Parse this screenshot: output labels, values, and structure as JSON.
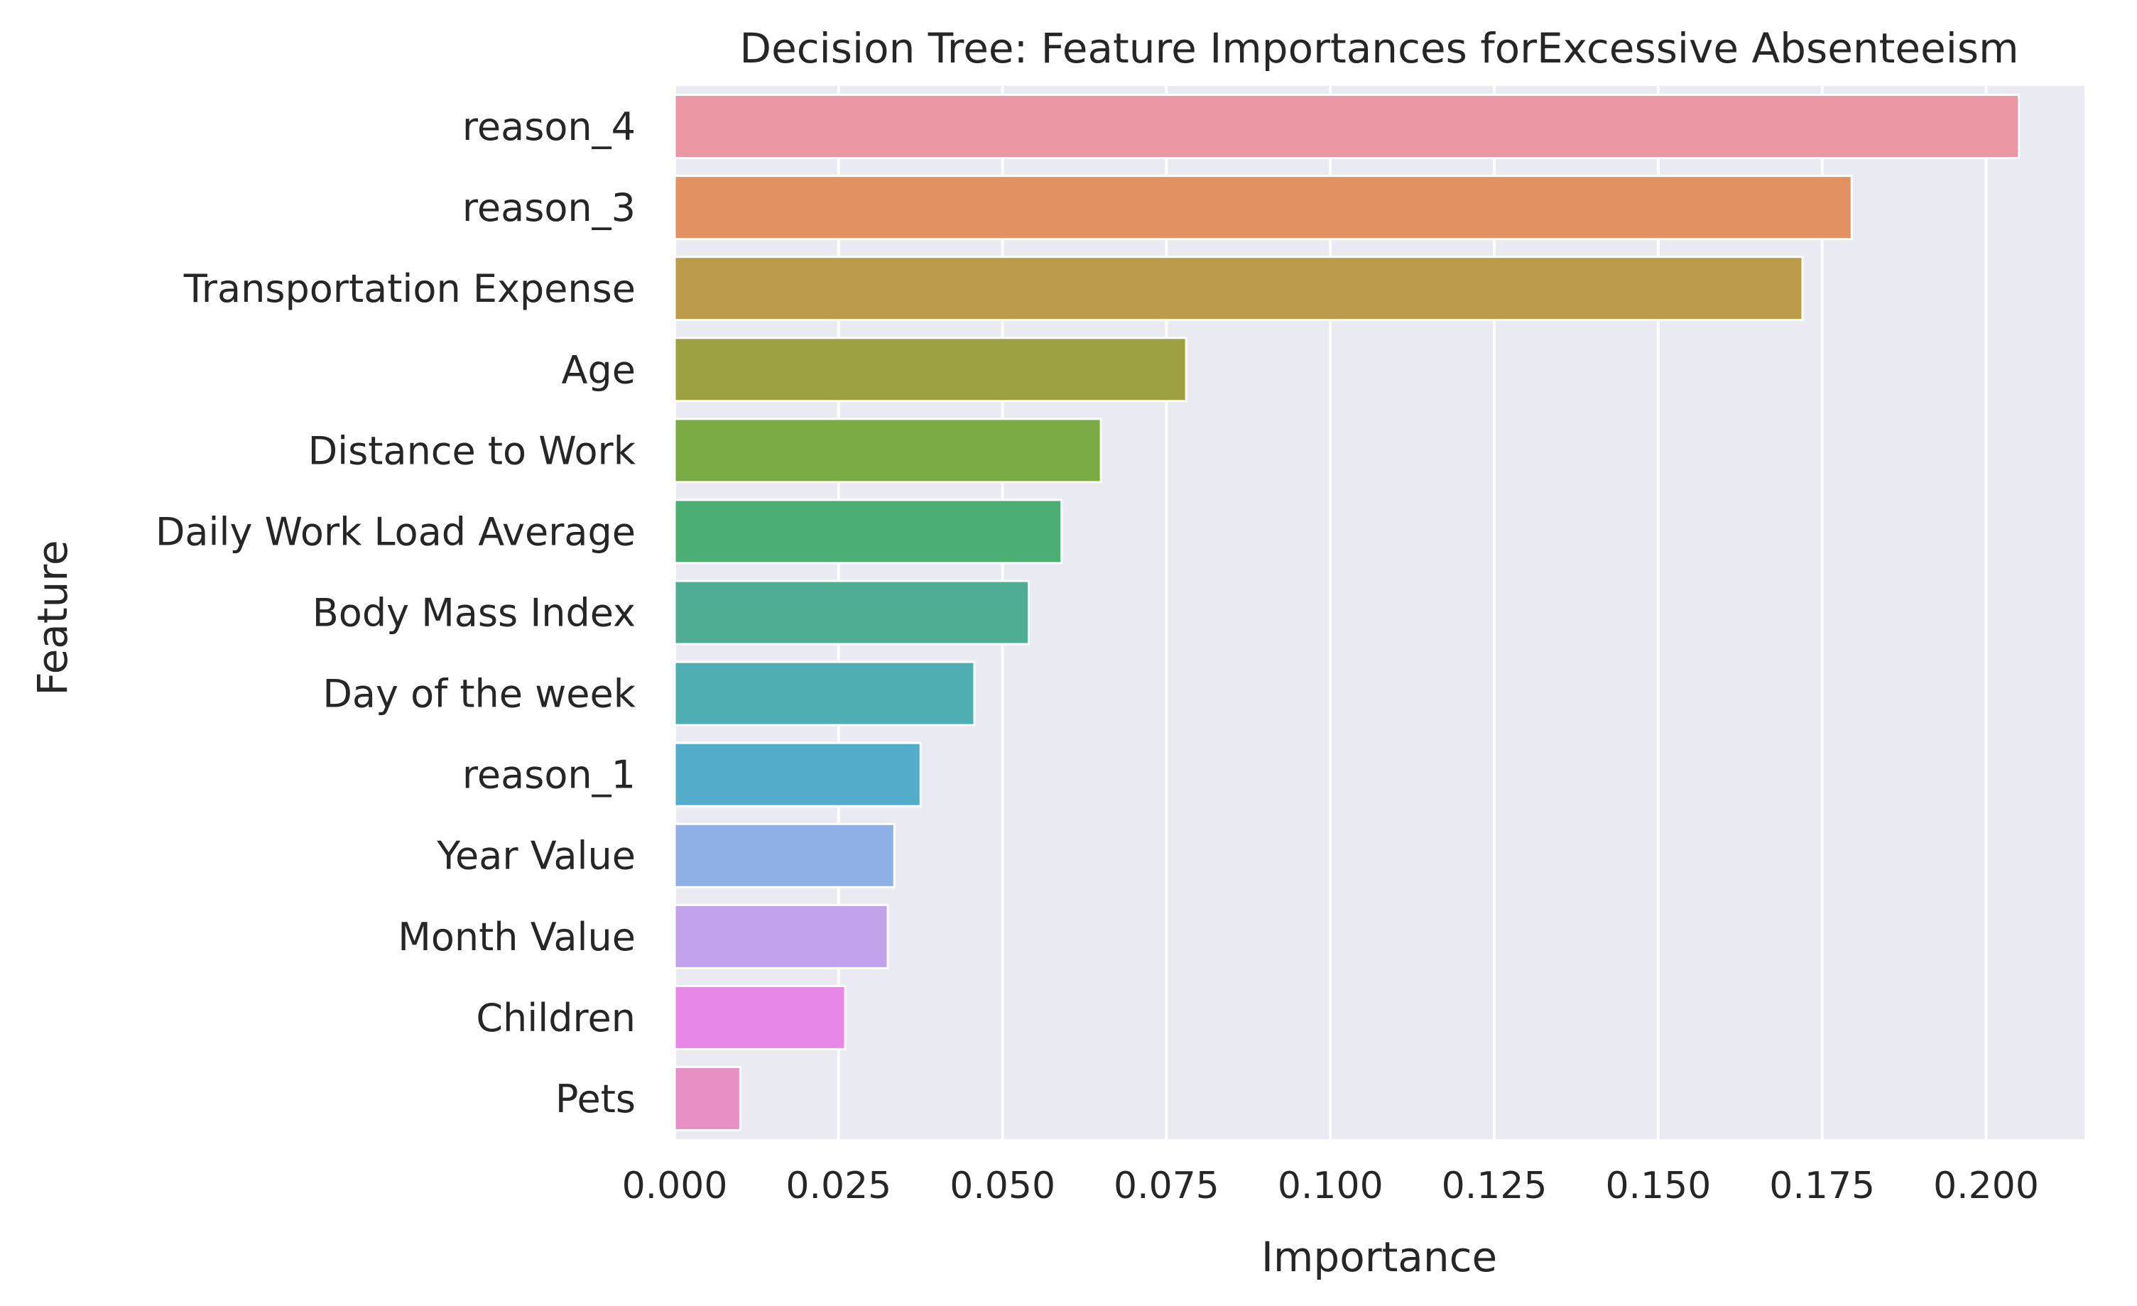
{
  "chart_data": {
    "type": "bar",
    "orientation": "horizontal",
    "title": "Decision Tree: Feature Importances forExcessive Absenteeism",
    "xlabel": "Importance",
    "ylabel": "Feature",
    "xlim": [
      0,
      0.215
    ],
    "xticks": [
      "0.000",
      "0.025",
      "0.050",
      "0.075",
      "0.100",
      "0.125",
      "0.150",
      "0.175",
      "0.200"
    ],
    "grid": true,
    "categories": [
      "reason_4",
      "reason_3",
      "Transportation Expense",
      "Age",
      "Distance to Work",
      "Daily Work Load Average",
      "Body Mass Index",
      "Day of the week",
      "reason_1",
      "Year Value",
      "Month Value",
      "Children",
      "Pets"
    ],
    "values": [
      0.205,
      0.1795,
      0.172,
      0.078,
      0.065,
      0.059,
      0.054,
      0.0457,
      0.0375,
      0.0335,
      0.0325,
      0.026,
      0.01
    ],
    "colors": [
      "#ea96a3",
      "#e29163",
      "#bb9b49",
      "#9da041",
      "#79aa44",
      "#4baf73",
      "#4ead93",
      "#4faeb1",
      "#53acc9",
      "#8fb0e7",
      "#c0a3eb",
      "#e788e8",
      "#e890c6"
    ],
    "background_color": "#eaeaf2"
  }
}
